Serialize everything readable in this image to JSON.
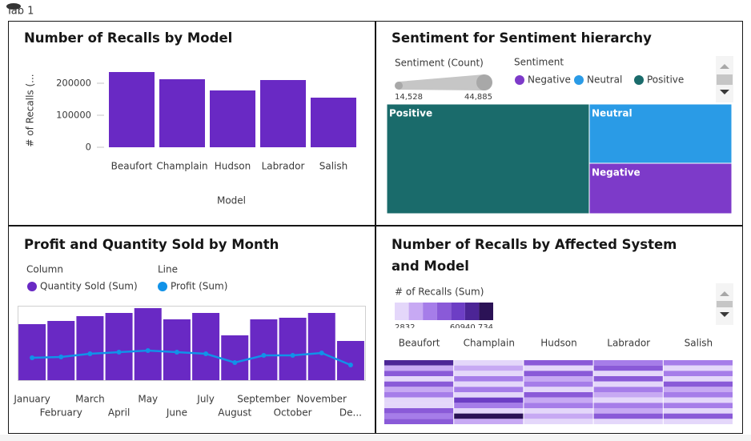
{
  "tab": "Tab 1",
  "chart_data": [
    {
      "type": "bar",
      "title": "Number of Recalls by Model",
      "y_label": "# of Recalls (...",
      "x_label": "Model",
      "categories": [
        "Beaufort",
        "Champlain",
        "Hudson",
        "Labrador",
        "Salish"
      ],
      "values": [
        235000,
        212500,
        177500,
        210000,
        155000
      ],
      "color": "#6929c4",
      "ylim": [
        0,
        240000
      ],
      "yticks": [
        0,
        100000,
        200000
      ]
    },
    {
      "type": "treemap",
      "title": "Sentiment for Sentiment hierarchy",
      "size_legend": {
        "title": "Sentiment (Count)",
        "min": {
          "value": 14528,
          "label": "14,528"
        },
        "max": {
          "value": 44885,
          "label": "44,885"
        }
      },
      "color_legend_title": "Sentiment",
      "categories": [
        "Negative",
        "Neutral",
        "Positive"
      ],
      "values": [
        14528,
        17056,
        44885
      ],
      "colors": [
        "#7d3ac9",
        "#2a9be6",
        "#1a6b6b"
      ]
    },
    {
      "type": "combo",
      "title": "Profit and Quantity Sold by Month",
      "column_legend_title": "Column",
      "line_legend_title": "Line",
      "categories": [
        "January",
        "February",
        "March",
        "April",
        "May",
        "June",
        "July",
        "August",
        "September",
        "October",
        "November",
        "De..."
      ],
      "series": [
        {
          "name": "Quantity Sold (Sum)",
          "kind": "bar",
          "color": "#6929c4",
          "values": [
            70,
            74,
            80,
            84,
            90,
            76,
            84,
            56,
            76,
            78,
            84,
            49
          ]
        },
        {
          "name": "Profit (Sum)",
          "kind": "line",
          "color": "#1192e8",
          "values": [
            28,
            29,
            33,
            35,
            37,
            35,
            33,
            22,
            31,
            31,
            34,
            19
          ]
        }
      ],
      "ylim": [
        0,
        92
      ]
    },
    {
      "type": "heatmap",
      "title": "Number of Recalls by Affected System and Model",
      "legend_title": "# of Recalls (Sum)",
      "clim": [
        2832,
        60940.734
      ],
      "colors": [
        "#e4d7fa",
        "#c7a9f3",
        "#a67de9",
        "#8a5ad8",
        "#6d3ec5",
        "#4c2596",
        "#2b1256"
      ],
      "categories": [
        "Beaufort",
        "Champlain",
        "Hudson",
        "Labrador",
        "Salish"
      ],
      "rows": [
        null,
        null,
        null,
        null,
        null,
        null,
        null,
        null,
        null,
        null,
        null,
        null
      ],
      "values": [
        [
          45000,
          8000,
          30000,
          25000,
          20000
        ],
        [
          12000,
          15000,
          5000,
          35000,
          5000
        ],
        [
          30000,
          5000,
          35000,
          10000,
          25000
        ],
        [
          8000,
          20000,
          15000,
          30000,
          8000
        ],
        [
          35000,
          10000,
          25000,
          6000,
          30000
        ],
        [
          15000,
          25000,
          8000,
          20000,
          12000
        ],
        [
          25000,
          6000,
          30000,
          15000,
          25000
        ],
        [
          5000,
          40000,
          12000,
          8000,
          6000
        ],
        [
          3000,
          20000,
          22000,
          25000,
          20000
        ],
        [
          30000,
          8000,
          6000,
          12000,
          10000
        ],
        [
          20000,
          58000,
          18000,
          30000,
          28000
        ],
        [
          28000,
          12000,
          10000,
          5000,
          6000
        ]
      ]
    }
  ]
}
